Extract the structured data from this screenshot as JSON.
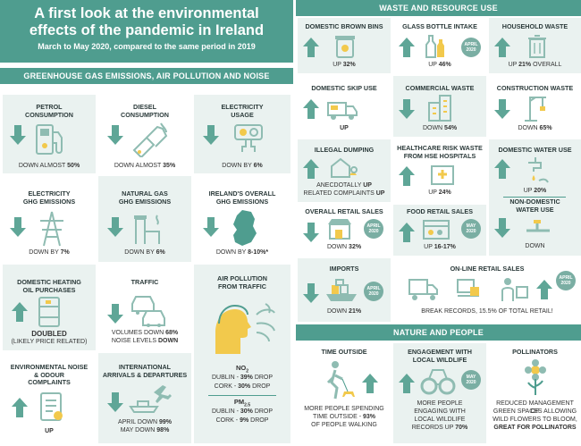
{
  "header": {
    "title_line1": "A first look at the environmental",
    "title_line2": "effects of the pandemic in Ireland",
    "subtitle": "March to May 2020, compared to the same period in 2019"
  },
  "sections": {
    "ghg": "GREENHOUSE GAS EMISSIONS, AIR POLLUTION AND NOISE",
    "waste": "WASTE AND RESOURCE USE",
    "nature": "NATURE AND PEOPLE"
  },
  "badge": {
    "line1": "APRIL",
    "line2": "2020",
    "line3": "MAY",
    "line4": "2020"
  },
  "ghg": {
    "petrol": {
      "label1": "PETROL",
      "label2": "CONSUMPTION",
      "value": "DOWN ALMOST ",
      "bold": "50%"
    },
    "diesel": {
      "label1": "DIESEL",
      "label2": "CONSUMPTION",
      "value": "DOWN ALMOST ",
      "bold": "35%"
    },
    "electricity": {
      "label1": "ELECTRICITY",
      "label2": "USAGE",
      "value": "DOWN BY ",
      "bold": "6%"
    },
    "elec_ghg": {
      "label1": "ELECTRICITY",
      "label2": "GHG EMISSIONS",
      "value": "DOWN BY ",
      "bold": "7%"
    },
    "gas_ghg": {
      "label1": "NATURAL GAS",
      "label2": "GHG EMISSIONS",
      "value": "DOWN BY ",
      "bold": "6%"
    },
    "ireland_ghg": {
      "label1": "IRELAND'S OVERALL",
      "label2": "GHG EMISSIONS",
      "value": "DOWN BY ",
      "bold": "8-10%*"
    },
    "heating": {
      "label1": "DOMESTIC HEATING",
      "label2": "OIL PURCHASES",
      "value": "DOUBLED",
      "note": "(LIKELY PRICE RELATED)"
    },
    "traffic": {
      "label": "TRAFFIC",
      "value1": "VOLUMES DOWN ",
      "bold1": "68%",
      "value2": "NOISE LEVELS ",
      "bold2": "DOWN"
    },
    "air": {
      "label1": "AIR POLLUTION",
      "label2": "FROM TRAFFIC",
      "no2": "NO",
      "no2_sub": "2",
      "no2_dublin": "DUBLIN - ",
      "no2_dublin_v": "39%",
      "no2_dublin_t": " DROP",
      "no2_cork": "CORK - ",
      "no2_cork_v": "30%",
      "no2_cork_t": " DROP",
      "pm": "PM",
      "pm_sub": "2.5",
      "pm_dublin": "DUBLIN - ",
      "pm_dublin_v": "30%",
      "pm_dublin_t": " DROP",
      "pm_cork": "CORK - ",
      "pm_cork_v": "9%",
      "pm_cork_t": " DROP"
    },
    "noise": {
      "label1": "ENVIRONMENTAL NOISE",
      "label2": "& ODOUR",
      "label3": "COMPLAINTS",
      "value": "UP"
    },
    "arrivals": {
      "label1": "INTERNATIONAL",
      "label2": "ARRIVALS & DEPARTURES",
      "value1": "APRIL DOWN ",
      "bold1": "99%",
      "value2": "MAY DOWN ",
      "bold2": "98%"
    }
  },
  "waste": {
    "brown_bins": {
      "label": "DOMESTIC BROWN BINS",
      "value": "UP ",
      "bold": "32%"
    },
    "glass": {
      "label": "GLASS BOTTLE INTAKE",
      "value": "UP ",
      "bold": "46%"
    },
    "household": {
      "label": "HOUSEHOLD WASTE",
      "value": "UP ",
      "bold": "21%",
      "suffix": " OVERALL"
    },
    "skip": {
      "label": "DOMESTIC SKIP USE",
      "value": "UP"
    },
    "commercial": {
      "label": "COMMERCIAL WASTE",
      "value": "DOWN ",
      "bold": "54%"
    },
    "construction": {
      "label": "CONSTRUCTION WASTE",
      "value": "DOWN ",
      "bold": "65%"
    },
    "dumping": {
      "label": "ILLEGAL DUMPING",
      "value1": "ANECDOTALLY ",
      "bold1": "UP",
      "value2": "RELATED COMPLAINTS ",
      "bold2": "UP"
    },
    "healthcare": {
      "label1": "HEALTHCARE RISK WASTE",
      "label2": "FROM HSE HOSPITALS",
      "value": "UP ",
      "bold": "24%"
    },
    "water": {
      "label": "DOMESTIC WATER USE",
      "value": "UP ",
      "bold": "20%"
    },
    "nondomestic_water": {
      "label1": "NON-DOMESTIC",
      "label2": "WATER USE",
      "value": "DOWN"
    },
    "retail": {
      "label": "OVERALL RETAIL SALES",
      "value": "DOWN ",
      "bold": "32%"
    },
    "food_retail": {
      "label": "FOOD RETAIL SALES",
      "value": "UP ",
      "bold": "16-17%"
    },
    "imports": {
      "label": "IMPORTS",
      "value": "DOWN ",
      "bold": "21%"
    },
    "online": {
      "label": "ON-LINE RETAIL SALES",
      "value": "BREAK RECORDS, 15.5% OF TOTAL RETAIL!"
    }
  },
  "nature": {
    "time_outside": {
      "label": "TIME OUTSIDE",
      "value1": "MORE PEOPLE SPENDING",
      "value2": "TIME OUTSIDE - ",
      "bold2": "93%",
      "value3": "OF PEOPLE WALKING"
    },
    "wildlife": {
      "label1": "ENGAGEMENT WITH",
      "label2": "LOCAL WILDLIFE",
      "value1": "MORE PEOPLE",
      "value2": "ENGAGING WITH",
      "value3": "LOCAL WILDLIFE",
      "value4": "RECORDS UP ",
      "bold4": "70%"
    },
    "pollinators": {
      "label": "POLLINATORS",
      "value1": "REDUCED MANAGEMENT OF",
      "value2": "GREEN SPACES ALLOWING",
      "value3": "WILD FLOWERS TO BLOOM,",
      "bold4": "GREAT FOR POLLINATORS"
    }
  },
  "colors": {
    "teal": "#4f9d8f",
    "arrow": "#5fa697",
    "panel": "#eaf2f0",
    "icon": "#8fbcb2"
  },
  "icons": [
    "arrow-up-icon",
    "arrow-down-icon",
    "fuel-pump-icon",
    "fuel-nozzle-icon",
    "plug-socket-icon",
    "pylon-icon",
    "gas-pipe-icon",
    "ireland-map-icon",
    "oil-drum-icon",
    "cars-icon",
    "person-breathing-icon",
    "complaint-form-icon",
    "ship-plane-icon",
    "brown-bin-icon",
    "bottles-icon",
    "rubbish-bin-icon",
    "skip-truck-icon",
    "office-buildings-icon",
    "crane-icon",
    "dumped-house-icon",
    "hospital-icon",
    "tap-icon",
    "pipe-valve-icon",
    "shop-icon",
    "food-shop-icon",
    "cargo-ship-icon",
    "online-delivery-icon",
    "dog-walker-icon",
    "binoculars-icon",
    "flowers-icon"
  ]
}
